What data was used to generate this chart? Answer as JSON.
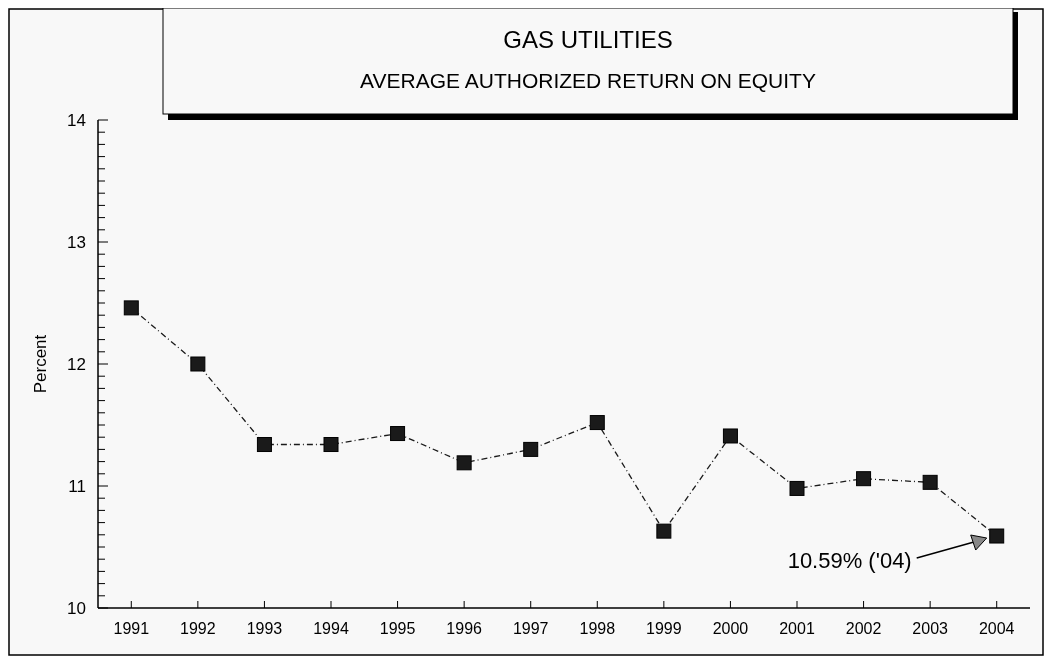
{
  "chart_data": {
    "type": "line",
    "title": "GAS UTILITIES",
    "subtitle": "AVERAGE AUTHORIZED RETURN ON EQUITY",
    "ylabel": "Percent",
    "categories": [
      "1991",
      "1992",
      "1993",
      "1994",
      "1995",
      "1996",
      "1997",
      "1998",
      "1999",
      "2000",
      "2001",
      "2002",
      "2003",
      "2004"
    ],
    "series": [
      {
        "color": "#1a1a1a",
        "values": [
          12.46,
          12.0,
          11.34,
          11.34,
          11.43,
          11.19,
          11.3,
          11.52,
          10.63,
          11.41,
          10.98,
          11.06,
          11.03,
          10.59
        ]
      }
    ],
    "ylim": [
      10,
      14
    ],
    "yticks": [
      10,
      {
        "value": 10.1,
        "label": null
      },
      {
        "value": 10.2,
        "label": null
      },
      {
        "value": 10.3,
        "label": null
      },
      {
        "value": 10.4,
        "label": null
      },
      {
        "value": 10.5,
        "label": null
      },
      {
        "value": 10.6,
        "label": null
      },
      {
        "value": 10.7,
        "label": null
      },
      {
        "value": 10.8,
        "label": null
      },
      {
        "value": 10.9,
        "label": null
      },
      11,
      {
        "value": 11.1,
        "label": null
      },
      {
        "value": 11.2,
        "label": null
      },
      {
        "value": 11.3,
        "label": null
      },
      {
        "value": 11.4,
        "label": null
      },
      {
        "value": 11.5,
        "label": null
      },
      {
        "value": 11.6,
        "label": null
      },
      {
        "value": 11.7,
        "label": null
      },
      {
        "value": 11.8,
        "label": null
      },
      {
        "value": 11.9,
        "label": null
      },
      12,
      {
        "value": 12.1,
        "label": null
      },
      {
        "value": 12.2,
        "label": null
      },
      {
        "value": 12.3,
        "label": null
      },
      {
        "value": 12.4,
        "label": null
      },
      {
        "value": 12.5,
        "label": null
      },
      {
        "value": 12.6,
        "label": null
      },
      {
        "value": 12.7,
        "label": null
      },
      {
        "value": 12.8,
        "label": null
      },
      {
        "value": 12.9,
        "label": null
      },
      13,
      {
        "value": 13.1,
        "label": null
      },
      {
        "value": 13.2,
        "label": null
      },
      {
        "value": 13.3,
        "label": null
      },
      {
        "value": 13.4,
        "label": null
      },
      {
        "value": 13.5,
        "label": null
      },
      {
        "value": 13.6,
        "label": null
      },
      {
        "value": 13.7,
        "label": null
      },
      {
        "value": 13.8,
        "label": null
      },
      {
        "value": 13.9,
        "label": null
      },
      14
    ],
    "annotations": [
      "10.59% ('04)"
    ],
    "marker": "square",
    "line_style": "dashed"
  }
}
